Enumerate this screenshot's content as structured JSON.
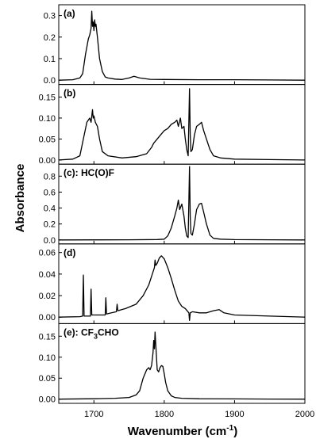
{
  "chart_data": {
    "type": "line",
    "xlabel": "Wavenumber (cm",
    "xlabel_sup": "-1",
    "xlabel_end": ")",
    "ylabel": "Absorbance",
    "xlim": [
      1650,
      2000
    ],
    "x_ticks": [
      "1700",
      "1800",
      "1900",
      "2000"
    ],
    "x_tick_values": [
      1700,
      1800,
      1900,
      2000
    ],
    "panels": [
      {
        "label": "(a)",
        "ylim": [
          -0.02,
          0.35
        ],
        "y_ticks": [
          "0.0",
          "0.1",
          "0.2",
          "0.3"
        ],
        "y_tick_values": [
          0.0,
          0.1,
          0.2,
          0.3
        ],
        "series": [
          {
            "x": [
              1650,
              1670,
              1680,
              1684,
              1688,
              1692,
              1694,
              1696,
              1697,
              1698,
              1699,
              1700,
              1701,
              1702,
              1703,
              1705,
              1708,
              1712,
              1716,
              1720,
              1730,
              1740,
              1750,
              1757,
              1765,
              1780,
              1800,
              1850,
              1900,
              1950,
              2000
            ],
            "y": [
              0.0,
              0.002,
              0.01,
              0.03,
              0.12,
              0.19,
              0.21,
              0.24,
              0.32,
              0.25,
              0.27,
              0.23,
              0.28,
              0.25,
              0.26,
              0.2,
              0.1,
              0.04,
              0.015,
              0.01,
              0.005,
              0.003,
              0.01,
              0.018,
              0.01,
              0.004,
              0.003,
              0.002,
              0.002,
              0.001,
              0.0
            ]
          }
        ]
      },
      {
        "label": "(b)",
        "ylim": [
          -0.01,
          0.18
        ],
        "y_ticks": [
          "0.00",
          "0.05",
          "0.10",
          "0.15"
        ],
        "y_tick_values": [
          0.0,
          0.05,
          0.1,
          0.15
        ],
        "series": [
          {
            "x": [
              1650,
              1670,
              1680,
              1685,
              1690,
              1694,
              1696,
              1698,
              1699,
              1700,
              1702,
              1705,
              1708,
              1712,
              1720,
              1740,
              1760,
              1775,
              1782,
              1785,
              1790,
              1795,
              1800,
              1805,
              1810,
              1815,
              1818,
              1820,
              1823,
              1825,
              1828,
              1830,
              1832,
              1834,
              1836,
              1837,
              1838,
              1840,
              1843,
              1846,
              1850,
              1853,
              1856,
              1860,
              1865,
              1870,
              1880,
              1900,
              1950,
              2000
            ],
            "y": [
              0.0,
              0.002,
              0.01,
              0.05,
              0.09,
              0.1,
              0.09,
              0.12,
              0.1,
              0.105,
              0.09,
              0.08,
              0.05,
              0.02,
              0.01,
              0.005,
              0.008,
              0.015,
              0.03,
              0.04,
              0.05,
              0.06,
              0.07,
              0.075,
              0.085,
              0.09,
              0.095,
              0.08,
              0.1,
              0.075,
              0.08,
              0.05,
              0.025,
              0.01,
              0.17,
              0.06,
              0.02,
              0.025,
              0.06,
              0.08,
              0.085,
              0.09,
              0.07,
              0.05,
              0.025,
              0.01,
              0.005,
              0.002,
              0.001,
              0.0
            ]
          }
        ]
      },
      {
        "label": "(c): HC(O)F",
        "ylim": [
          -0.05,
          0.95
        ],
        "y_ticks": [
          "0.0",
          "0.2",
          "0.4",
          "0.6",
          "0.8"
        ],
        "y_tick_values": [
          0.0,
          0.2,
          0.4,
          0.6,
          0.8
        ],
        "series": [
          {
            "x": [
              1650,
              1700,
              1750,
              1790,
              1800,
              1805,
              1810,
              1815,
              1818,
              1820,
              1822,
              1825,
              1828,
              1830,
              1832,
              1834,
              1836,
              1837,
              1838,
              1840,
              1843,
              1846,
              1850,
              1853,
              1856,
              1860,
              1865,
              1870,
              1880,
              1900,
              1950,
              2000
            ],
            "y": [
              0.0,
              0.001,
              0.002,
              0.005,
              0.01,
              0.05,
              0.15,
              0.3,
              0.4,
              0.5,
              0.38,
              0.45,
              0.3,
              0.15,
              0.05,
              0.03,
              0.92,
              0.3,
              0.08,
              0.06,
              0.2,
              0.38,
              0.45,
              0.46,
              0.35,
              0.2,
              0.06,
              0.02,
              0.01,
              0.004,
              0.002,
              0.0
            ]
          }
        ]
      },
      {
        "label": "(d)",
        "ylim": [
          -0.006,
          0.068
        ],
        "y_ticks": [
          "0.00",
          "0.02",
          "0.04",
          "0.06"
        ],
        "y_tick_values": [
          0.0,
          0.02,
          0.04,
          0.06
        ],
        "series": [
          {
            "x": [
              1650,
              1680,
              1684,
              1685,
              1686,
              1690,
              1695,
              1696,
              1697,
              1700,
              1710,
              1716,
              1717,
              1718,
              1725,
              1732,
              1733,
              1734,
              1745,
              1760,
              1770,
              1778,
              1783,
              1786,
              1787,
              1788,
              1790,
              1793,
              1796,
              1800,
              1805,
              1810,
              1815,
              1820,
              1825,
              1830,
              1835,
              1836,
              1837,
              1840,
              1850,
              1860,
              1870,
              1878,
              1885,
              1900,
              1950,
              2000
            ],
            "y": [
              0.0,
              0.0005,
              0.001,
              0.039,
              0.001,
              0.001,
              0.001,
              0.026,
              0.002,
              0.002,
              0.002,
              0.002,
              0.018,
              0.003,
              0.004,
              0.005,
              0.012,
              0.006,
              0.008,
              0.012,
              0.02,
              0.03,
              0.04,
              0.046,
              0.053,
              0.048,
              0.05,
              0.055,
              0.057,
              0.054,
              0.046,
              0.036,
              0.025,
              0.015,
              0.01,
              0.008,
              0.004,
              -0.003,
              0.004,
              0.005,
              0.004,
              0.004,
              0.006,
              0.007,
              0.004,
              0.002,
              0.001,
              0.0
            ]
          }
        ]
      },
      {
        "label": "(e): CF",
        "label_sub": "3",
        "label_end": "CHO",
        "ylim": [
          -0.01,
          0.18
        ],
        "y_ticks": [
          "0.00",
          "0.05",
          "0.10",
          "0.15"
        ],
        "y_tick_values": [
          0.0,
          0.05,
          0.1,
          0.15
        ],
        "series": [
          {
            "x": [
              1650,
              1700,
              1730,
              1750,
              1760,
              1765,
              1770,
              1775,
              1778,
              1780,
              1782,
              1784,
              1785,
              1786,
              1787,
              1788,
              1789,
              1790,
              1792,
              1794,
              1796,
              1798,
              1800,
              1802,
              1805,
              1810,
              1815,
              1825,
              1850,
              1900,
              1950,
              2000
            ],
            "y": [
              0.0,
              0.001,
              0.002,
              0.004,
              0.01,
              0.02,
              0.05,
              0.07,
              0.075,
              0.07,
              0.08,
              0.11,
              0.14,
              0.12,
              0.16,
              0.13,
              0.1,
              0.07,
              0.065,
              0.075,
              0.08,
              0.078,
              0.06,
              0.04,
              0.02,
              0.008,
              0.004,
              0.002,
              0.001,
              0.0005,
              0.0002,
              0.0
            ]
          }
        ]
      }
    ]
  }
}
